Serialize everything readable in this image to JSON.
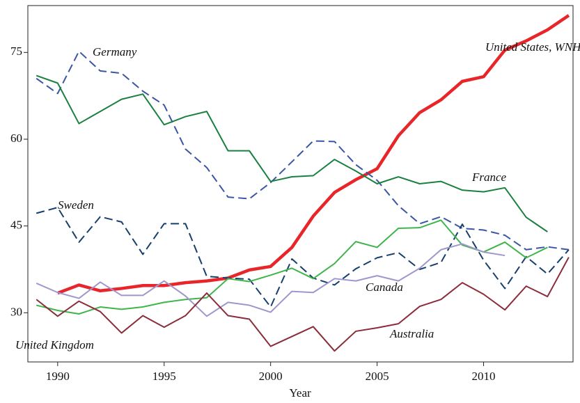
{
  "chart_data": {
    "type": "line",
    "xlabel": "Year",
    "x": [
      1989,
      1990,
      1991,
      1992,
      1993,
      1994,
      1995,
      1996,
      1997,
      1998,
      1999,
      2000,
      2001,
      2002,
      2003,
      2004,
      2005,
      2006,
      2007,
      2008,
      2009,
      2010,
      2011,
      2012,
      2013,
      2014
    ],
    "xlim": [
      1988.6,
      2014.2
    ],
    "xticks": [
      1990,
      1995,
      2000,
      2005,
      2010
    ],
    "ylim": [
      21.5,
      83.1
    ],
    "yticks": [
      30,
      45,
      60,
      75
    ],
    "series": [
      {
        "name": "United States, WNHs",
        "color": "#e8262a",
        "dashed": false,
        "width": 4.5,
        "values": [
          null,
          33.4,
          34.8,
          33.8,
          34.2,
          34.7,
          34.7,
          35.2,
          35.5,
          36.0,
          37.4,
          38.0,
          41.3,
          46.7,
          50.8,
          53.0,
          54.9,
          60.6,
          64.6,
          66.8,
          70.0,
          70.8,
          75.4,
          77.0,
          78.9,
          81.4
        ]
      },
      {
        "name": "Germany",
        "color": "#3a55a5",
        "dashed": true,
        "width": 2,
        "values": [
          70.5,
          67.9,
          75.2,
          71.8,
          71.4,
          68.3,
          65.9,
          58.3,
          55.1,
          50.0,
          49.7,
          52.5,
          56.1,
          59.7,
          59.6,
          55.6,
          52.9,
          48.5,
          45.4,
          46.6,
          44.6,
          44.3,
          43.4,
          40.9,
          41.4,
          40.9
        ]
      },
      {
        "name": "France",
        "color": "#1a8040",
        "dashed": false,
        "width": 2,
        "values": [
          71.0,
          69.7,
          62.7,
          64.8,
          66.9,
          67.8,
          62.5,
          63.9,
          64.8,
          58.0,
          58.0,
          52.7,
          53.5,
          53.7,
          56.5,
          54.5,
          52.3,
          53.5,
          52.3,
          52.7,
          51.2,
          50.9,
          51.6,
          46.5,
          44.0,
          null
        ]
      },
      {
        "name": "Sweden",
        "color": "#173f6b",
        "dashed": true,
        "width": 2,
        "values": [
          47.2,
          48.2,
          42.2,
          46.6,
          45.7,
          40.1,
          45.4,
          45.4,
          36.3,
          36.0,
          35.8,
          31.0,
          39.3,
          36.0,
          34.8,
          37.6,
          39.5,
          40.4,
          37.5,
          38.7,
          45.3,
          39.1,
          34.2,
          39.7,
          36.7,
          40.9
        ]
      },
      {
        "name": "United Kingdom",
        "color": "#3db54a",
        "dashed": false,
        "width": 2,
        "values": [
          31.3,
          30.4,
          29.8,
          31.0,
          30.6,
          31.0,
          31.8,
          32.3,
          32.6,
          35.9,
          35.4,
          36.5,
          37.7,
          35.9,
          38.5,
          42.3,
          41.3,
          44.6,
          44.7,
          46.0,
          41.7,
          40.5,
          42.2,
          39.5,
          41.3,
          null
        ]
      },
      {
        "name": "Canada",
        "color": "#9f97cc",
        "dashed": false,
        "width": 2,
        "values": [
          35.1,
          33.5,
          32.5,
          35.3,
          33.0,
          33.0,
          35.5,
          32.9,
          29.4,
          31.8,
          31.3,
          30.1,
          33.7,
          33.5,
          35.9,
          35.5,
          36.4,
          35.5,
          37.7,
          40.9,
          41.9,
          40.5,
          39.9,
          null,
          null,
          null
        ]
      },
      {
        "name": "Australia",
        "color": "#8b2c3a",
        "dashed": false,
        "width": 2,
        "values": [
          32.3,
          29.4,
          32.0,
          30.2,
          26.5,
          29.5,
          27.5,
          29.5,
          33.4,
          29.5,
          28.9,
          24.2,
          25.9,
          27.6,
          23.4,
          26.8,
          27.4,
          28.1,
          31.1,
          32.3,
          35.2,
          33.2,
          30.5,
          34.6,
          32.8,
          39.6
        ]
      }
    ]
  }
}
